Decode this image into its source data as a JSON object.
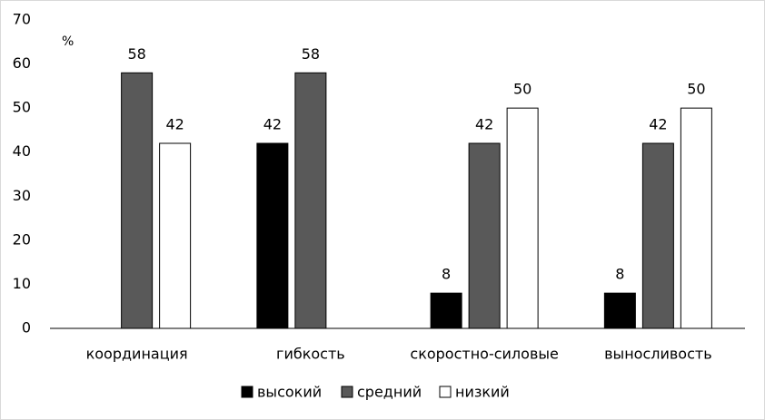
{
  "chart_data": {
    "type": "bar",
    "unit_label": "%",
    "categories": [
      "координация",
      "гибкость",
      "скоростно-силовые",
      "выносливость"
    ],
    "series": [
      {
        "name": "высокий",
        "color": "#000000",
        "values": [
          null,
          42,
          8,
          8
        ]
      },
      {
        "name": "средний",
        "color": "#595959",
        "values": [
          58,
          58,
          42,
          42
        ]
      },
      {
        "name": "низкий",
        "color": "#ffffff",
        "values": [
          42,
          null,
          50,
          50
        ]
      }
    ],
    "ylim": [
      0,
      70
    ],
    "yticks": [
      0,
      10,
      20,
      30,
      40,
      50,
      60,
      70
    ],
    "grid": false,
    "legend": "bottom"
  }
}
